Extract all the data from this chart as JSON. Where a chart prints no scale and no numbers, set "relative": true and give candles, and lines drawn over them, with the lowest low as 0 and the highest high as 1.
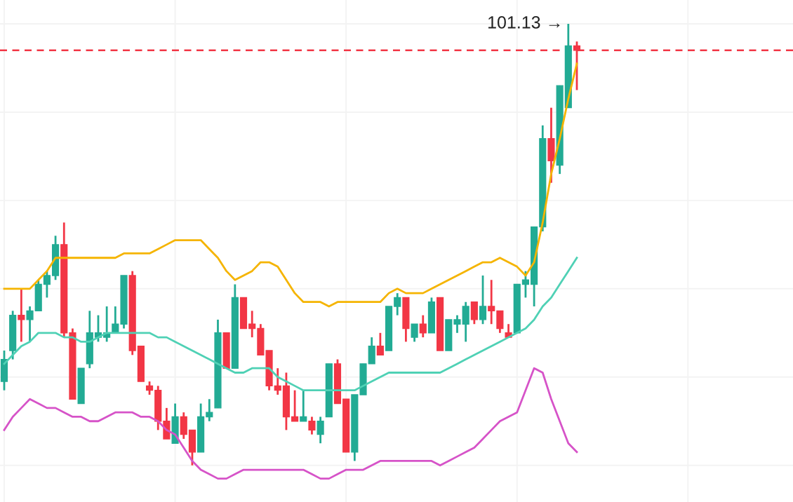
{
  "chart_data": {
    "type": "candlestick",
    "relative": true,
    "categories": [
      null,
      null,
      null,
      null,
      null,
      null,
      null,
      null,
      null,
      null,
      null,
      null,
      null,
      null,
      null,
      null,
      null,
      null,
      null,
      null,
      null,
      null,
      null,
      null,
      null,
      null,
      null,
      null,
      null,
      null,
      null,
      null,
      null,
      null,
      null,
      null,
      null,
      null,
      null,
      null,
      null,
      null,
      null,
      null,
      null,
      null,
      null,
      null,
      null,
      null,
      null,
      null,
      null,
      null,
      null,
      null,
      null,
      null,
      null,
      null,
      null,
      null,
      null,
      null,
      null,
      null,
      null,
      null
    ],
    "grid": true,
    "series": [
      {
        "type": "line",
        "color": "#f5b400",
        "values": [
          0.4,
          0.4,
          0.4,
          0.4,
          0.42,
          0.44,
          0.47,
          0.47,
          0.47,
          0.47,
          0.47,
          0.47,
          0.47,
          0.47,
          0.48,
          0.48,
          0.48,
          0.48,
          0.49,
          0.5,
          0.51,
          0.51,
          0.51,
          0.51,
          0.49,
          0.47,
          0.44,
          0.42,
          0.43,
          0.44,
          0.46,
          0.46,
          0.45,
          0.42,
          0.39,
          0.37,
          0.37,
          0.37,
          0.36,
          0.37,
          0.37,
          0.37,
          0.37,
          0.37,
          0.37,
          0.39,
          0.4,
          0.39,
          0.39,
          0.39,
          0.4,
          0.41,
          0.42,
          0.43,
          0.44,
          0.45,
          0.46,
          0.46,
          0.47,
          0.46,
          0.45,
          0.43,
          0.46,
          0.55,
          0.66,
          0.74,
          0.83,
          0.91
        ]
      },
      {
        "type": "line",
        "color": "#4fd1b5",
        "values": [
          0.23,
          0.25,
          0.27,
          0.28,
          0.3,
          0.3,
          0.3,
          0.29,
          0.29,
          0.28,
          0.28,
          0.29,
          0.3,
          0.3,
          0.3,
          0.3,
          0.3,
          0.3,
          0.29,
          0.29,
          0.28,
          0.27,
          0.26,
          0.25,
          0.24,
          0.23,
          0.22,
          0.21,
          0.21,
          0.22,
          0.22,
          0.22,
          0.2,
          0.19,
          0.18,
          0.17,
          0.17,
          0.17,
          0.17,
          0.17,
          0.17,
          0.17,
          0.18,
          0.19,
          0.2,
          0.21,
          0.21,
          0.21,
          0.21,
          0.21,
          0.21,
          0.21,
          0.22,
          0.23,
          0.24,
          0.25,
          0.26,
          0.27,
          0.28,
          0.29,
          0.3,
          0.31,
          0.33,
          0.36,
          0.38,
          0.41,
          0.44,
          0.47
        ]
      },
      {
        "type": "line",
        "color": "#d653c8",
        "values": [
          0.08,
          0.11,
          0.13,
          0.15,
          0.14,
          0.13,
          0.13,
          0.12,
          0.11,
          0.11,
          0.1,
          0.1,
          0.11,
          0.12,
          0.12,
          0.12,
          0.11,
          0.11,
          0.1,
          0.08,
          0.07,
          0.04,
          0.01,
          -0.01,
          -0.02,
          -0.03,
          -0.03,
          -0.02,
          -0.01,
          -0.01,
          -0.01,
          -0.01,
          -0.01,
          -0.01,
          -0.01,
          -0.01,
          -0.02,
          -0.03,
          -0.03,
          -0.02,
          -0.01,
          -0.01,
          -0.01,
          0.0,
          0.01,
          0.01,
          0.01,
          0.01,
          0.01,
          0.01,
          0.01,
          0.0,
          0.01,
          0.02,
          0.03,
          0.04,
          0.06,
          0.08,
          0.1,
          0.11,
          0.12,
          0.17,
          0.22,
          0.21,
          0.15,
          0.1,
          0.05,
          0.03
        ]
      },
      {
        "colors": [
          "#22ab94",
          "#22ab94",
          "#f23645",
          "#22ab94",
          "#22ab94",
          "#22ab94",
          "#22ab94",
          "#f23645",
          "#f23645",
          "#22ab94",
          "#22ab94",
          "#22ab94",
          "#22ab94",
          "#22ab94",
          "#22ab94",
          "#f23645",
          "#f23645",
          "#f23645",
          "#f23645",
          "#f23645",
          "#22ab94",
          "#f23645",
          "#f23645",
          "#22ab94",
          "#22ab94",
          "#22ab94",
          "#f23645",
          "#22ab94",
          "#f23645",
          "#f23645",
          "#f23645",
          "#f23645",
          "#f23645",
          "#f23645",
          "#f23645",
          "#22ab94",
          "#f23645",
          "#22ab94",
          "#22ab94",
          "#f23645",
          "#f23645",
          "#22ab94",
          "#22ab94",
          "#22ab94",
          "#f23645",
          "#22ab94",
          "#22ab94",
          "#f23645",
          "#22ab94",
          "#f23645",
          "#22ab94",
          "#f23645",
          "#22ab94",
          "#22ab94",
          "#22ab94",
          "#f23645",
          "#22ab94",
          "#f23645",
          "#f23645",
          "#f23645",
          "#22ab94",
          "#22ab94",
          "#22ab94",
          "#22ab94",
          "#f23645",
          "#22ab94",
          "#22ab94",
          "#f23645"
        ],
        "ohlc": [
          [
            0.19,
            0.26,
            0.17,
            0.24
          ],
          [
            0.26,
            0.35,
            0.24,
            0.34
          ],
          [
            0.34,
            0.4,
            0.28,
            0.33
          ],
          [
            0.33,
            0.36,
            0.28,
            0.35
          ],
          [
            0.35,
            0.42,
            0.35,
            0.41
          ],
          [
            0.41,
            0.44,
            0.38,
            0.43
          ],
          [
            0.43,
            0.52,
            0.42,
            0.5
          ],
          [
            0.5,
            0.55,
            0.29,
            0.3
          ],
          [
            0.3,
            0.31,
            0.15,
            0.15
          ],
          [
            0.14,
            0.22,
            0.14,
            0.22
          ],
          [
            0.23,
            0.35,
            0.22,
            0.3
          ],
          [
            0.29,
            0.34,
            0.28,
            0.3
          ],
          [
            0.29,
            0.36,
            0.28,
            0.3
          ],
          [
            0.3,
            0.36,
            0.3,
            0.32
          ],
          [
            0.32,
            0.43,
            0.31,
            0.43
          ],
          [
            0.43,
            0.44,
            0.25,
            0.26
          ],
          [
            0.27,
            0.27,
            0.19,
            0.19
          ],
          [
            0.18,
            0.19,
            0.16,
            0.17
          ],
          [
            0.17,
            0.18,
            0.08,
            0.1
          ],
          [
            0.1,
            0.13,
            0.06,
            0.06
          ],
          [
            0.05,
            0.14,
            0.05,
            0.11
          ],
          [
            0.11,
            0.12,
            0.06,
            0.07
          ],
          [
            0.08,
            0.08,
            0.0,
            0.03
          ],
          [
            0.03,
            0.14,
            0.03,
            0.11
          ],
          [
            0.11,
            0.15,
            0.1,
            0.12
          ],
          [
            0.13,
            0.33,
            0.13,
            0.3
          ],
          [
            0.3,
            0.3,
            0.22,
            0.22
          ],
          [
            0.22,
            0.41,
            0.22,
            0.38
          ],
          [
            0.38,
            0.38,
            0.31,
            0.31
          ],
          [
            0.32,
            0.35,
            0.29,
            0.31
          ],
          [
            0.31,
            0.32,
            0.25,
            0.25
          ],
          [
            0.26,
            0.26,
            0.17,
            0.18
          ],
          [
            0.18,
            0.22,
            0.16,
            0.17
          ],
          [
            0.18,
            0.21,
            0.08,
            0.11
          ],
          [
            0.11,
            0.17,
            0.1,
            0.1
          ],
          [
            0.1,
            0.17,
            0.1,
            0.11
          ],
          [
            0.1,
            0.11,
            0.07,
            0.08
          ],
          [
            0.07,
            0.11,
            0.05,
            0.1
          ],
          [
            0.11,
            0.23,
            0.11,
            0.23
          ],
          [
            0.23,
            0.24,
            0.14,
            0.14
          ],
          [
            0.15,
            0.15,
            0.03,
            0.03
          ],
          [
            0.03,
            0.16,
            0.01,
            0.16
          ],
          [
            0.16,
            0.23,
            0.16,
            0.23
          ],
          [
            0.23,
            0.29,
            0.23,
            0.27
          ],
          [
            0.27,
            0.3,
            0.25,
            0.25
          ],
          [
            0.26,
            0.36,
            0.26,
            0.36
          ],
          [
            0.36,
            0.39,
            0.34,
            0.38
          ],
          [
            0.38,
            0.38,
            0.28,
            0.31
          ],
          [
            0.29,
            0.32,
            0.28,
            0.32
          ],
          [
            0.32,
            0.34,
            0.29,
            0.3
          ],
          [
            0.3,
            0.38,
            0.3,
            0.37
          ],
          [
            0.38,
            0.38,
            0.26,
            0.26
          ],
          [
            0.26,
            0.33,
            0.26,
            0.33
          ],
          [
            0.32,
            0.34,
            0.3,
            0.33
          ],
          [
            0.32,
            0.37,
            0.28,
            0.36
          ],
          [
            0.37,
            0.37,
            0.32,
            0.33
          ],
          [
            0.33,
            0.43,
            0.32,
            0.36
          ],
          [
            0.36,
            0.42,
            0.32,
            0.35
          ],
          [
            0.35,
            0.35,
            0.3,
            0.31
          ],
          [
            0.3,
            0.32,
            0.29,
            0.29
          ],
          [
            0.3,
            0.41,
            0.3,
            0.41
          ],
          [
            0.41,
            0.44,
            0.38,
            0.42
          ],
          [
            0.41,
            0.54,
            0.36,
            0.54
          ],
          [
            0.54,
            0.77,
            0.53,
            0.74
          ],
          [
            0.74,
            0.81,
            0.64,
            0.69
          ],
          [
            0.68,
            0.86,
            0.66,
            0.86
          ],
          [
            0.81,
            1.0,
            0.81,
            0.95
          ],
          [
            0.95,
            0.96,
            0.85,
            0.94
          ]
        ]
      }
    ],
    "ref_lines": [
      {
        "axis": "y",
        "value": 0.94,
        "color": "#f23645",
        "line_style": "dashed"
      }
    ],
    "annotations": [
      "101.13 →"
    ]
  }
}
